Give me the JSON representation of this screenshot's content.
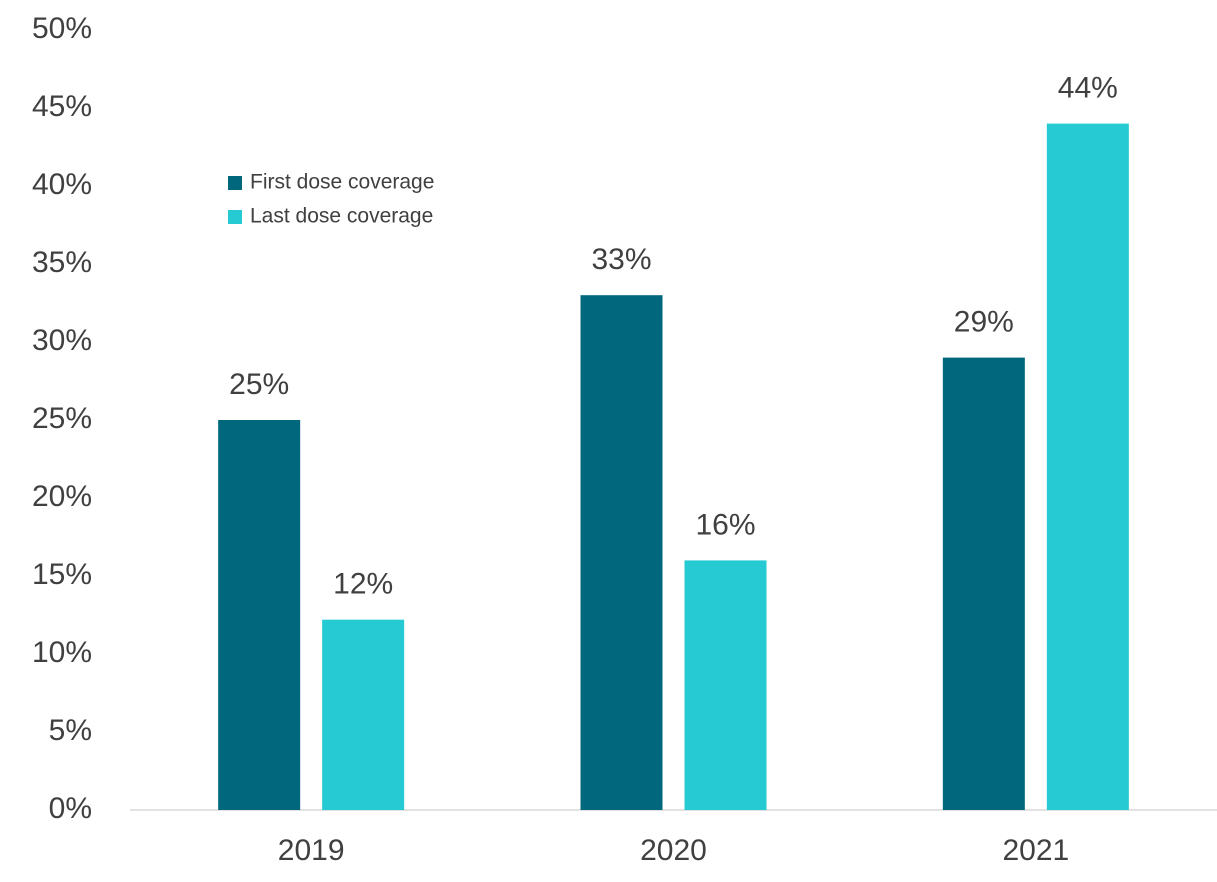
{
  "chart_data": {
    "type": "bar",
    "categories": [
      "2019",
      "2020",
      "2021"
    ],
    "series": [
      {
        "name": "First dose coverage",
        "color": "#00677c",
        "values": [
          25,
          33,
          29
        ],
        "value_labels": [
          "25%",
          "33%",
          "29%"
        ]
      },
      {
        "name": "Last dose coverage",
        "color": "#26cad3",
        "values": [
          12.2,
          16,
          44
        ],
        "value_labels": [
          "12%",
          "16%",
          "44%"
        ]
      }
    ],
    "ylim": [
      0,
      50
    ],
    "yticks": [
      {
        "value": 0,
        "label": "0%"
      },
      {
        "value": 5,
        "label": "5%"
      },
      {
        "value": 10,
        "label": "10%"
      },
      {
        "value": 15,
        "label": "15%"
      },
      {
        "value": 20,
        "label": "20%"
      },
      {
        "value": 25,
        "label": "25%"
      },
      {
        "value": 30,
        "label": "30%"
      },
      {
        "value": 35,
        "label": "35%"
      },
      {
        "value": 40,
        "label": "40%"
      },
      {
        "value": 45,
        "label": "45%"
      },
      {
        "value": 50,
        "label": "50%"
      }
    ],
    "grid": false,
    "legend": "upper-left"
  }
}
